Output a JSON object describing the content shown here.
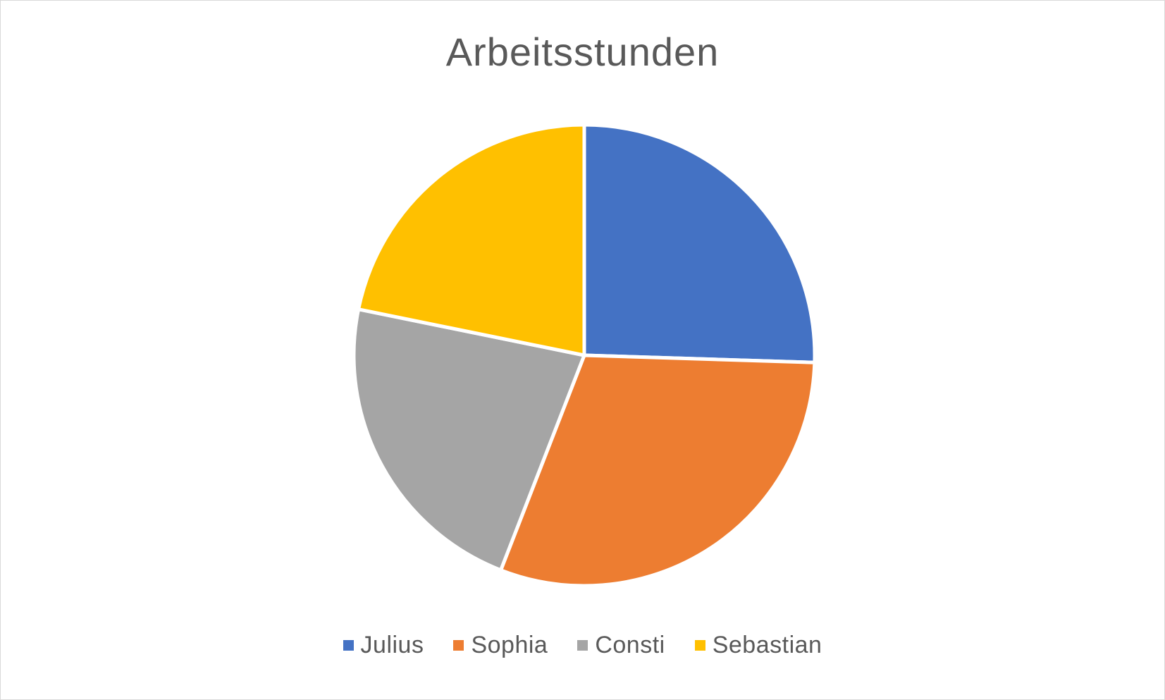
{
  "chart_data": {
    "type": "pie",
    "title": "Arbeitsstunden",
    "categories": [
      "Julius",
      "Sophia",
      "Consti",
      "Sebastian"
    ],
    "values": [
      25.5,
      30.4,
      22.3,
      21.8
    ],
    "colors": [
      "#4472C4",
      "#ED7D31",
      "#A5A5A5",
      "#FFC000"
    ],
    "start_angle_deg": 0,
    "direction": "clockwise",
    "legend_position": "bottom",
    "slice_border_color": "#ffffff"
  }
}
